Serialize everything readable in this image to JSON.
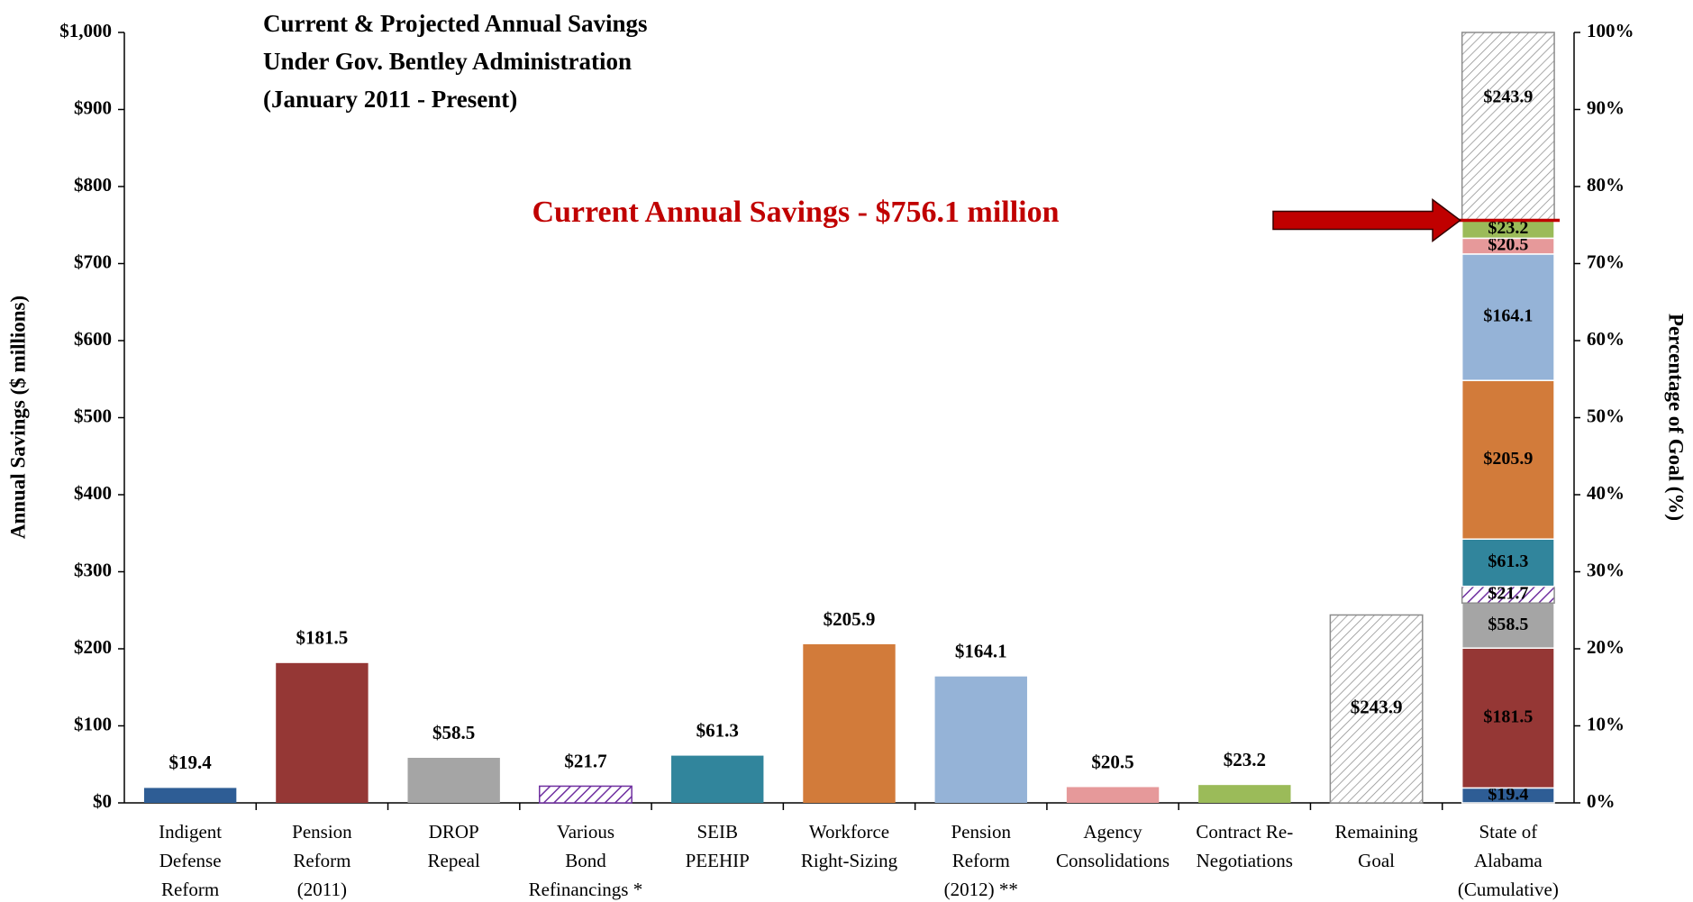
{
  "chart_data": {
    "type": "bar",
    "title_lines": [
      "Current & Projected Annual Savings",
      "Under Gov. Bentley Administration",
      "(January 2011 - Present)"
    ],
    "annotation": "Current Annual Savings - $756.1 million",
    "annotation_value": 756.1,
    "annotation_color": "#c00000",
    "y_axis_label": "Annual Savings ($ millions)",
    "y2_axis_label": "Percentage of Goal (%)",
    "categories": [
      [
        "Indigent",
        "Defense",
        "Reform"
      ],
      [
        "Pension",
        "Reform",
        "(2011)"
      ],
      [
        "DROP",
        "Repeal"
      ],
      [
        "Various",
        "Bond",
        "Refinancings *"
      ],
      [
        "SEIB",
        "PEEHIP"
      ],
      [
        "Workforce",
        "Right-Sizing"
      ],
      [
        "Pension",
        "Reform",
        "(2012) **"
      ],
      [
        "Agency",
        "Consolidations"
      ],
      [
        "Contract Re-",
        "Negotiations"
      ],
      [
        "Remaining",
        "Goal"
      ],
      [
        "State of",
        "Alabama",
        "(Cumulative)"
      ]
    ],
    "values": [
      19.4,
      181.5,
      58.5,
      21.7,
      61.3,
      205.9,
      164.1,
      20.5,
      23.2,
      243.9,
      null
    ],
    "value_labels": [
      "$19.4",
      "$181.5",
      "$58.5",
      "$21.7",
      "$61.3",
      "$205.9",
      "$164.1",
      "$20.5",
      "$23.2",
      "$243.9",
      null
    ],
    "colors": [
      "#2e5d95",
      "#953735",
      "#a5a5a5",
      "#7030a0",
      "#31859c",
      "#d27b3a",
      "#95b3d7",
      "#e6999a",
      "#9bbb59",
      "#8c8c8c",
      null
    ],
    "hatched": [
      false,
      false,
      false,
      true,
      false,
      false,
      false,
      false,
      false,
      true,
      false
    ],
    "stack_values": [
      19.4,
      181.5,
      58.5,
      21.7,
      61.3,
      205.9,
      164.1,
      20.5,
      23.2,
      243.9
    ],
    "stack_value_labels": [
      "$19.4",
      "$181.5",
      "$58.5",
      "$21.7",
      "$61.3",
      "$205.9",
      "$164.1",
      "$20.5",
      "$23.2",
      "$243.9"
    ],
    "ylim": [
      0,
      1000
    ],
    "yticks": [
      {
        "value": 0,
        "label": "$0"
      },
      {
        "value": 100,
        "label": "$100"
      },
      {
        "value": 200,
        "label": "$200"
      },
      {
        "value": 300,
        "label": "$300"
      },
      {
        "value": 400,
        "label": "$400"
      },
      {
        "value": 500,
        "label": "$500"
      },
      {
        "value": 600,
        "label": "$600"
      },
      {
        "value": 700,
        "label": "$700"
      },
      {
        "value": 800,
        "label": "$800"
      },
      {
        "value": 900,
        "label": "$900"
      },
      {
        "value": 1000,
        "label": "$1,000"
      }
    ],
    "y2lim": [
      0,
      100
    ],
    "y2ticks": [
      {
        "value": 0,
        "label": "0%"
      },
      {
        "value": 10,
        "label": "10%"
      },
      {
        "value": 20,
        "label": "20%"
      },
      {
        "value": 30,
        "label": "30%"
      },
      {
        "value": 40,
        "label": "40%"
      },
      {
        "value": 50,
        "label": "50%"
      },
      {
        "value": 60,
        "label": "60%"
      },
      {
        "value": 70,
        "label": "70%"
      },
      {
        "value": 80,
        "label": "80%"
      },
      {
        "value": 90,
        "label": "90%"
      },
      {
        "value": 100,
        "label": "100%"
      }
    ]
  }
}
